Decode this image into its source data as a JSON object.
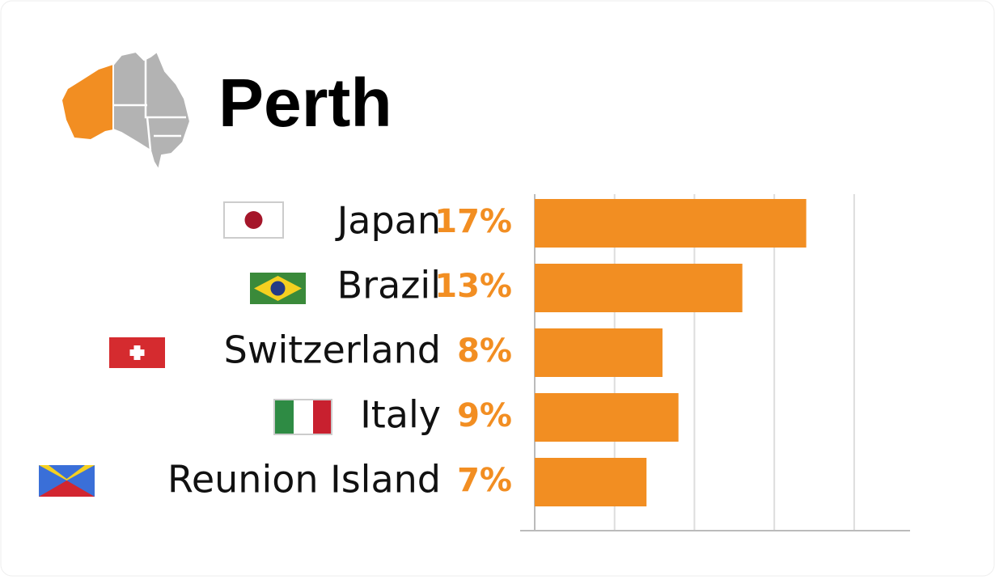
{
  "chart_data": {
    "type": "bar",
    "orientation": "horizontal",
    "title": "Perth",
    "categories": [
      "Japan",
      "Brazil",
      "Switzerland",
      "Italy",
      "Reunion Island"
    ],
    "values": [
      17,
      13,
      8,
      9,
      7
    ],
    "value_labels": [
      "17%",
      "13%",
      "8%",
      "9%",
      "7%"
    ],
    "color": "#f28e22",
    "xlim": [
      0,
      23.5
    ],
    "xticks": [
      0,
      5,
      10,
      15,
      20
    ],
    "grid": true
  }
}
